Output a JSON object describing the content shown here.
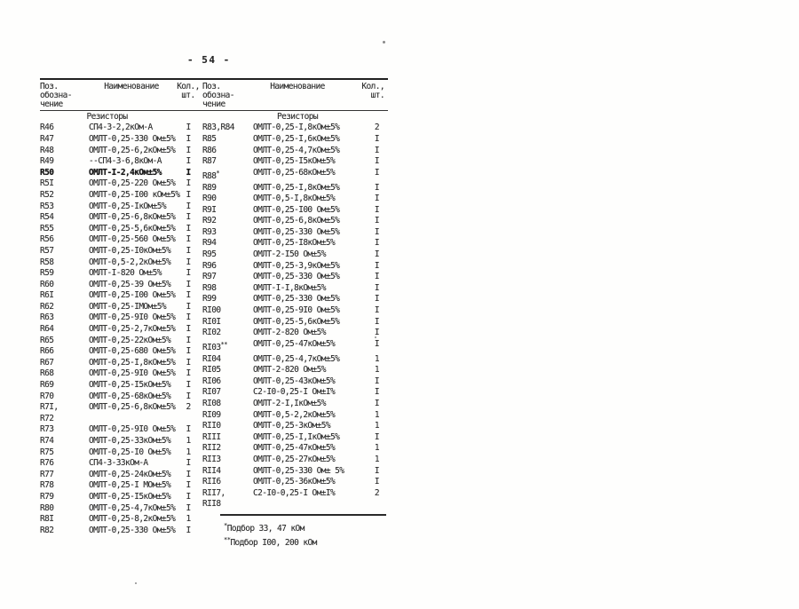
{
  "page": {
    "number": "- 54 -"
  },
  "table": {
    "col_headers": {
      "pos": "Поз.\nобозна-\nчение",
      "name": "Наименование",
      "qty": "Кол.,\nшт."
    },
    "left": {
      "section": "Резисторы",
      "rows": [
        {
          "pos": "R46",
          "name": "СП4-3-2,2кОм-А",
          "qty": "I"
        },
        {
          "pos": "R47",
          "name": "ОМЛТ-0,25-330 Ом±5%",
          "qty": "I"
        },
        {
          "pos": "R48",
          "name": "ОМЛТ-0,25-6,2кОм±5%",
          "qty": "I"
        },
        {
          "pos": "R49",
          "name": "--СП4-3-6,8кОм-А",
          "qty": "I"
        },
        {
          "pos": "R50",
          "name": "ОМЛТ-I-2,4кОм±5%",
          "qty": "I",
          "bold": true
        },
        {
          "pos": "R5I",
          "name": "ОМЛТ-0,25-220 Ом±5%",
          "qty": "I"
        },
        {
          "pos": "R52",
          "name": "ОМЛТ-0,25-I00 кОм±5%",
          "qty": "I"
        },
        {
          "pos": "R53",
          "name": "ОМЛТ-0,25-IкОм±5%",
          "qty": "I"
        },
        {
          "pos": "R54",
          "name": "ОМЛТ-0,25-6,8кОм±5%",
          "qty": "I"
        },
        {
          "pos": "R55",
          "name": "ОМЛТ-0,25-5,6кОм±5%",
          "qty": "I"
        },
        {
          "pos": "R56",
          "name": "ОМЛТ-0,25-560 Ом±5%",
          "qty": "I"
        },
        {
          "pos": "R57",
          "name": "ОМЛТ-0,25-I0кОм±5%",
          "qty": "I"
        },
        {
          "pos": "R58",
          "name": "ОМЛТ-0,5-2,2кОм±5%",
          "qty": "I"
        },
        {
          "pos": "R59",
          "name": "ОМЛТ-I-820 Ом±5%",
          "qty": "I"
        },
        {
          "pos": "R60",
          "name": "ОМЛТ-0,25-39 Ом±5%",
          "qty": "I"
        },
        {
          "pos": "R6I",
          "name": "ОМЛТ-0,25-I00 Ом±5%",
          "qty": "I"
        },
        {
          "pos": "R62",
          "name": "ОМЛТ-0,25-IМОм±5%",
          "qty": "I"
        },
        {
          "pos": "R63",
          "name": "ОМЛТ-0,25-9I0 Ом±5%",
          "qty": "I"
        },
        {
          "pos": "R64",
          "name": "ОМЛТ-0,25-2,7кОм±5%",
          "qty": "I"
        },
        {
          "pos": "R65",
          "name": "ОМЛТ-0,25-22кОм±5%",
          "qty": "I"
        },
        {
          "pos": "R66",
          "name": "ОМЛТ-0,25-680 Ом±5%",
          "qty": "I"
        },
        {
          "pos": "R67",
          "name": "ОМЛТ-0,25-I,8кОм±5%",
          "qty": "I"
        },
        {
          "pos": "R68",
          "name": "ОМЛТ-0,25-9I0 Ом±5%",
          "qty": "I"
        },
        {
          "pos": "R69",
          "name": "ОМЛТ-0,25-I5кОм±5%",
          "qty": "I"
        },
        {
          "pos": "R70",
          "name": "ОМЛТ-0,25-68кОм±5%",
          "qty": "I"
        },
        {
          "pos": "R7I,\nR72",
          "name": "ОМЛТ-0,25-6,8кОм±5%",
          "qty": "2"
        },
        {
          "pos": "R73",
          "name": "ОМЛТ-0,25-9I0 Ом±5%",
          "qty": "I"
        },
        {
          "pos": "R74",
          "name": "ОМЛТ-0,25-33кОм±5%",
          "qty": "1"
        },
        {
          "pos": "R75",
          "name": "ОМЛТ-0,25-I0 Ом±5%",
          "qty": "1"
        },
        {
          "pos": "R76",
          "name": "СП4-3-33кОм-А",
          "qty": "I"
        },
        {
          "pos": "R77",
          "name": "ОМЛТ-0,25-24кОм±5%",
          "qty": "I"
        },
        {
          "pos": "R78",
          "name": "ОМЛТ-0,25-I МОм±5%",
          "qty": "I"
        },
        {
          "pos": "R79",
          "name": "ОМЛТ-0,25-I5кОм±5%",
          "qty": "I"
        },
        {
          "pos": "R80",
          "name": "ОМЛТ-0,25-4,7кОм±5%",
          "qty": "I"
        },
        {
          "pos": "R8I",
          "name": "ОМЛТ-0,25-8,2кОм±5%",
          "qty": "1"
        },
        {
          "pos": "R82",
          "name": "ОМЛТ-0,25-330 Ом±5%",
          "qty": "I"
        }
      ]
    },
    "right": {
      "section": "Резисторы",
      "rows": [
        {
          "pos": "R83,R84",
          "name": "ОМЛТ-0,25-I,8кОм±5%",
          "qty": "2"
        },
        {
          "pos": "R85",
          "name": "ОМЛТ-0,25-I,6кОм±5%",
          "qty": "I"
        },
        {
          "pos": "R86",
          "name": "ОМЛТ-0,25-4,7кОм±5%",
          "qty": "I"
        },
        {
          "pos": "R87",
          "name": "ОМЛТ-0,25-I5кОм±5%",
          "qty": "I"
        },
        {
          "pos": "R88*",
          "name": "ОМЛТ-0,25-68кОм±5%",
          "qty": "I"
        },
        {
          "pos": "R89",
          "name": "ОМЛТ-0,25-I,8кОм±5%",
          "qty": "I"
        },
        {
          "pos": "R90",
          "name": "ОМЛТ-0,5-I,8кОм±5%",
          "qty": "I"
        },
        {
          "pos": "R9I",
          "name": "ОМЛТ-0,25-I00 Ом±5%",
          "qty": "I"
        },
        {
          "pos": "R92",
          "name": "ОМЛТ-0,25-6,8кОм±5%",
          "qty": "I"
        },
        {
          "pos": "R93",
          "name": "ОМЛТ-0,25-330 Ом±5%",
          "qty": "I"
        },
        {
          "pos": "R94",
          "name": "ОМЛТ-0,25-I8кОм±5%",
          "qty": "I"
        },
        {
          "pos": "R95",
          "name": "ОМЛТ-2-I50 Ом±5%",
          "qty": "I"
        },
        {
          "pos": "R96",
          "name": "ОМЛТ-0,25-3,9кОм±5%",
          "qty": "I"
        },
        {
          "pos": "R97",
          "name": "ОМЛТ-0,25-330 Ом±5%",
          "qty": "I"
        },
        {
          "pos": "R98",
          "name": "ОМЛТ-I-I,8кОм±5%",
          "qty": "I"
        },
        {
          "pos": "R99",
          "name": "ОМЛТ-0,25-330 Ом±5%",
          "qty": "I"
        },
        {
          "pos": "RI00",
          "name": "ОМЛТ-0,25-9I0 Ом±5%",
          "qty": "I"
        },
        {
          "pos": "RI0I",
          "name": "ОМЛТ-0,25-5,6кОм±5%",
          "qty": "I"
        },
        {
          "pos": "RI02",
          "name": "ОМЛТ-2-820 Ом±5%",
          "qty": "I"
        },
        {
          "pos": "RI03**",
          "name": "ОМЛТ-0,25-47кОм±5%",
          "qty": "I"
        },
        {
          "pos": "RI04",
          "name": "ОМЛТ-0,25-4,7кОм±5%",
          "qty": "1"
        },
        {
          "pos": "RI05",
          "name": "ОМЛТ-2-820 Ом±5%",
          "qty": "1"
        },
        {
          "pos": "RI06",
          "name": "ОМЛТ-0,25-43кОм±5%",
          "qty": "I"
        },
        {
          "pos": "RI07",
          "name": "С2-I0-0,25-I Ом±I%",
          "qty": "I"
        },
        {
          "pos": "RI08",
          "name": "ОМЛТ-2-I,IкОм±5%",
          "qty": "I"
        },
        {
          "pos": "RI09",
          "name": "ОМЛТ-0,5-2,2кОм±5%",
          "qty": "1"
        },
        {
          "pos": "RII0",
          "name": "ОМЛТ-0,25-3кОм±5%",
          "qty": "1"
        },
        {
          "pos": "RIII",
          "name": "ОМЛТ-0,25-I,IкОм±5%",
          "qty": "I"
        },
        {
          "pos": "RII2",
          "name": "ОМЛТ-0,25-47кОм±5%",
          "qty": "1"
        },
        {
          "pos": "RII3",
          "name": "ОМЛТ-0,25-27кОм±5%",
          "qty": "1"
        },
        {
          "pos": "RII4",
          "name": "ОМЛТ-0,25-330 Ом± 5%",
          "qty": "I"
        },
        {
          "pos": "RII6",
          "name": "ОМЛТ-0,25-36кОм±5%",
          "qty": "I"
        },
        {
          "pos": "RII7,\nRII8",
          "name": "С2-I0-0,25-I Ом±I%",
          "qty": "2"
        }
      ]
    }
  },
  "footnotes": [
    {
      "marker": "*",
      "text": "Подбор 33, 47 кОм"
    },
    {
      "marker": "**",
      "text": "Подбор I00, 200 кОм"
    }
  ]
}
